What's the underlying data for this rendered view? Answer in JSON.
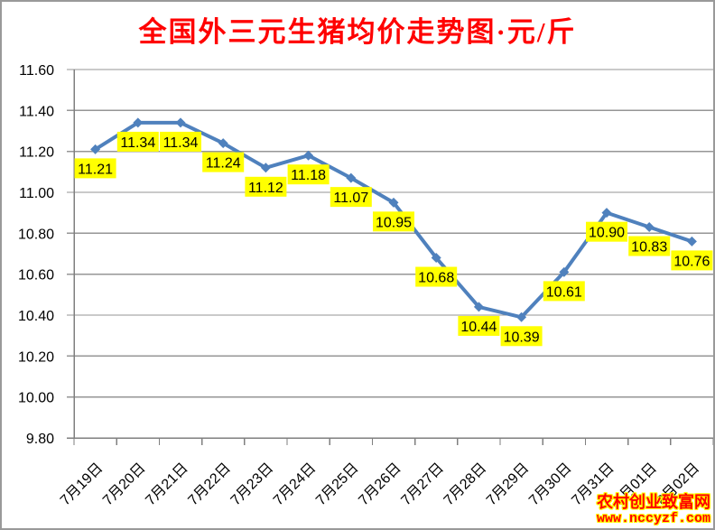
{
  "title": {
    "text": "全国外三元生猪均价走势图·元/斤",
    "color": "#FF0000"
  },
  "watermark": {
    "site_name": "农村创业致富网",
    "site_url": "www.nccyzf.com",
    "text_color": "#FF0000",
    "outline_color": "#FFFF00"
  },
  "chart_data": {
    "type": "line",
    "title": "全国外三元生猪均价走势图·元/斤",
    "unit": "元/斤",
    "categories": [
      "7月19日",
      "7月20日",
      "7月21日",
      "7月22日",
      "7月23日",
      "7月24日",
      "7月25日",
      "7月26日",
      "7月27日",
      "7月28日",
      "7月29日",
      "7月30日",
      "7月31日",
      "8月01日",
      "8月02日"
    ],
    "values": [
      11.21,
      11.34,
      11.34,
      11.24,
      11.12,
      11.18,
      11.07,
      10.95,
      10.68,
      10.44,
      10.39,
      10.61,
      10.9,
      10.83,
      10.76
    ],
    "data_labels": [
      "11.21",
      "11.34",
      "11.34",
      "11.24",
      "11.12",
      "11.18",
      "11.07",
      "10.95",
      "10.68",
      "10.44",
      "10.39",
      "10.61",
      "10.90",
      "10.83",
      "10.76"
    ],
    "ylim": [
      9.8,
      11.6
    ],
    "ytick_step": 0.2,
    "ytick_labels": [
      "9.80",
      "10.00",
      "10.20",
      "10.40",
      "10.60",
      "10.80",
      "11.00",
      "11.20",
      "11.40",
      "11.60"
    ],
    "grid": true,
    "legend": "none",
    "marker": "diamond",
    "line_color": "#4F81BD",
    "data_label_bg": "#FFFF00",
    "data_label_color": "#000000",
    "grid_color": "#969696",
    "axis_color": "#7F7F7F"
  }
}
